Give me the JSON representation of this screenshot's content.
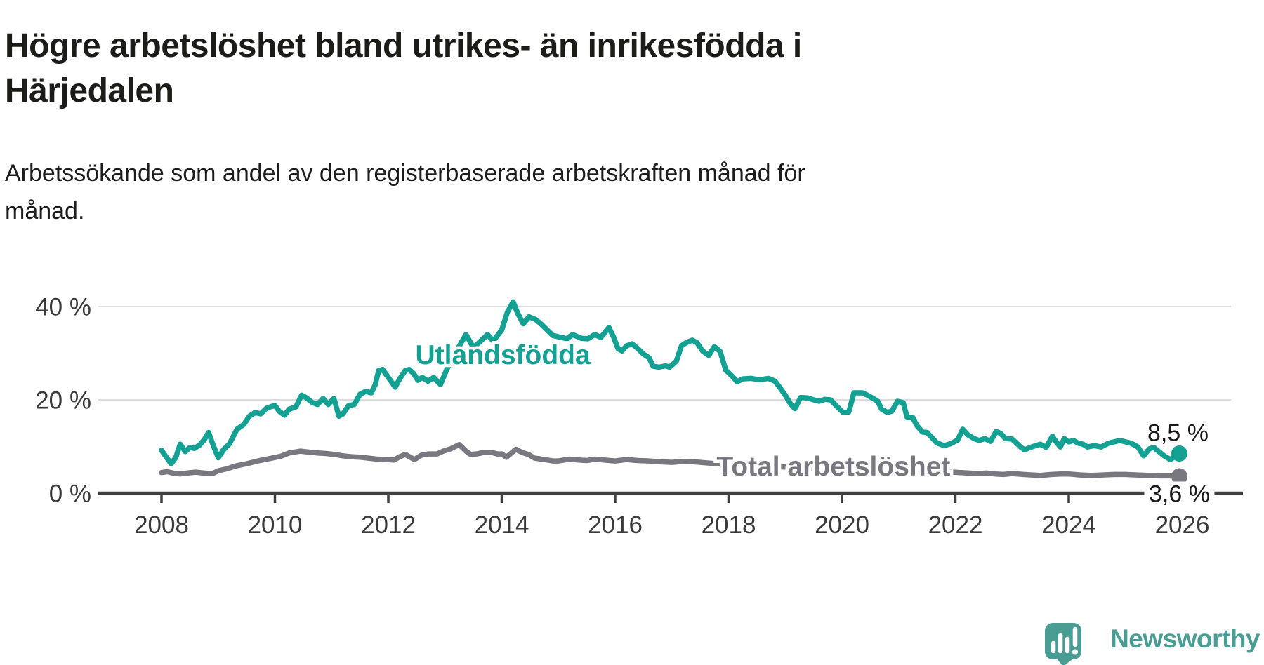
{
  "title": "Högre arbetslöshet bland utrikes- än inrikesfödda i\nHärjedalen",
  "subtitle": "Arbetssökande som andel av den registerbaserade arbetskraften månad för\nmånad.",
  "branding": {
    "logo_text": "Newsworthy",
    "logo_color": "#4a9d92",
    "logo_icon": "speech-bubble-bar-chart-exclamation"
  },
  "chart_data": {
    "type": "line",
    "title": "Högre arbetslöshet bland utrikes- än inrikesfödda i Härjedalen",
    "subtitle": "Arbetssökande som andel av den registerbaserade arbetskraften månad för månad.",
    "unit": "%",
    "grid": "horizontal",
    "x_axis": {
      "ticks": [
        2008,
        2010,
        2012,
        2014,
        2016,
        2018,
        2020,
        2022,
        2024,
        2026
      ],
      "tick_labels": [
        "2008",
        "2010",
        "2012",
        "2014",
        "2016",
        "2018",
        "2020",
        "2022",
        "2024",
        "2026"
      ],
      "range": [
        2007.6,
        2027.1
      ]
    },
    "y_axis": {
      "tick_values": [
        0,
        20,
        40
      ],
      "tick_labels": [
        "0 %",
        "20 %",
        "40 %"
      ],
      "range": [
        0,
        44
      ]
    },
    "colors": {
      "utlandsfodda": "#12a192",
      "total": "#797880",
      "gridline": "#dcdcdc",
      "axis": "#3f3f3f",
      "end_label_text": "#1a1a1a"
    },
    "series": [
      {
        "name": "Total arbetslöshet",
        "color": "#797880",
        "end_value": 3.6,
        "end_label": "3,6 %",
        "label_at": {
          "year": 2019.85,
          "pct": 5.9
        },
        "end_label_style": "on-axis-white-box",
        "points": [
          [
            2008.0,
            4.4
          ],
          [
            2008.1,
            4.6
          ],
          [
            2008.2,
            4.3
          ],
          [
            2008.33,
            4.1
          ],
          [
            2008.45,
            4.3
          ],
          [
            2008.6,
            4.5
          ],
          [
            2008.75,
            4.3
          ],
          [
            2008.9,
            4.2
          ],
          [
            2009.0,
            4.8
          ],
          [
            2009.15,
            5.2
          ],
          [
            2009.3,
            5.8
          ],
          [
            2009.5,
            6.3
          ],
          [
            2009.7,
            6.9
          ],
          [
            2009.9,
            7.4
          ],
          [
            2010.1,
            7.9
          ],
          [
            2010.25,
            8.6
          ],
          [
            2010.45,
            9.0
          ],
          [
            2010.6,
            8.8
          ],
          [
            2010.75,
            8.6
          ],
          [
            2010.9,
            8.5
          ],
          [
            2011.05,
            8.3
          ],
          [
            2011.2,
            8.0
          ],
          [
            2011.35,
            7.8
          ],
          [
            2011.5,
            7.7
          ],
          [
            2011.65,
            7.5
          ],
          [
            2011.8,
            7.3
          ],
          [
            2011.95,
            7.2
          ],
          [
            2012.1,
            7.1
          ],
          [
            2012.2,
            7.8
          ],
          [
            2012.3,
            8.3
          ],
          [
            2012.46,
            7.2
          ],
          [
            2012.58,
            8.1
          ],
          [
            2012.71,
            8.4
          ],
          [
            2012.86,
            8.4
          ],
          [
            2012.97,
            9.0
          ],
          [
            2013.1,
            9.5
          ],
          [
            2013.25,
            10.4
          ],
          [
            2013.37,
            9.0
          ],
          [
            2013.45,
            8.3
          ],
          [
            2013.56,
            8.4
          ],
          [
            2013.68,
            8.7
          ],
          [
            2013.83,
            8.7
          ],
          [
            2013.92,
            8.4
          ],
          [
            2014.0,
            8.4
          ],
          [
            2014.08,
            7.7
          ],
          [
            2014.25,
            9.4
          ],
          [
            2014.36,
            8.7
          ],
          [
            2014.47,
            8.3
          ],
          [
            2014.58,
            7.5
          ],
          [
            2014.75,
            7.2
          ],
          [
            2014.9,
            6.9
          ],
          [
            2015.0,
            6.9
          ],
          [
            2015.2,
            7.3
          ],
          [
            2015.35,
            7.1
          ],
          [
            2015.5,
            7.0
          ],
          [
            2015.65,
            7.3
          ],
          [
            2015.8,
            7.1
          ],
          [
            2016.0,
            6.9
          ],
          [
            2016.2,
            7.2
          ],
          [
            2016.4,
            7.0
          ],
          [
            2016.6,
            6.9
          ],
          [
            2016.8,
            6.7
          ],
          [
            2017.0,
            6.6
          ],
          [
            2017.2,
            6.8
          ],
          [
            2017.4,
            6.7
          ],
          [
            2017.6,
            6.5
          ],
          [
            2017.8,
            6.3
          ],
          [
            2018.0,
            6.2
          ],
          [
            2018.3,
            6.0
          ],
          [
            2018.6,
            5.8
          ],
          [
            2019.0,
            5.6
          ],
          [
            2019.4,
            5.4
          ],
          [
            2019.8,
            5.2
          ],
          [
            2020.1,
            5.3
          ],
          [
            2020.3,
            5.9
          ],
          [
            2020.6,
            5.7
          ],
          [
            2021.0,
            5.3
          ],
          [
            2021.4,
            4.9
          ],
          [
            2021.8,
            4.6
          ],
          [
            2022.1,
            4.4
          ],
          [
            2022.4,
            4.2
          ],
          [
            2022.55,
            4.3
          ],
          [
            2022.7,
            4.1
          ],
          [
            2022.85,
            4.0
          ],
          [
            2023.0,
            4.2
          ],
          [
            2023.2,
            4.0
          ],
          [
            2023.35,
            3.9
          ],
          [
            2023.5,
            3.8
          ],
          [
            2023.7,
            4.0
          ],
          [
            2023.85,
            4.1
          ],
          [
            2024.0,
            4.1
          ],
          [
            2024.2,
            3.9
          ],
          [
            2024.4,
            3.8
          ],
          [
            2024.6,
            3.9
          ],
          [
            2024.8,
            4.0
          ],
          [
            2025.0,
            4.0
          ],
          [
            2025.2,
            3.9
          ],
          [
            2025.4,
            3.8
          ],
          [
            2025.6,
            3.7
          ],
          [
            2025.78,
            3.7
          ],
          [
            2025.95,
            3.6
          ]
        ]
      },
      {
        "name": "Utlandsfödda",
        "color": "#12a192",
        "end_value": 8.5,
        "end_label": "8,5 %",
        "label_at": {
          "year": 2014.02,
          "pct": 29.8
        },
        "end_label_style": "above-point",
        "points": [
          [
            2008.0,
            9.2
          ],
          [
            2008.08,
            7.8
          ],
          [
            2008.17,
            6.3
          ],
          [
            2008.25,
            7.6
          ],
          [
            2008.33,
            10.5
          ],
          [
            2008.42,
            8.9
          ],
          [
            2008.5,
            9.8
          ],
          [
            2008.58,
            9.6
          ],
          [
            2008.67,
            10.3
          ],
          [
            2008.75,
            11.4
          ],
          [
            2008.83,
            13.0
          ],
          [
            2008.92,
            10.0
          ],
          [
            2009.0,
            7.6
          ],
          [
            2009.1,
            9.4
          ],
          [
            2009.2,
            10.6
          ],
          [
            2009.33,
            13.7
          ],
          [
            2009.45,
            14.7
          ],
          [
            2009.55,
            16.5
          ],
          [
            2009.65,
            17.3
          ],
          [
            2009.75,
            17.0
          ],
          [
            2009.85,
            18.2
          ],
          [
            2009.92,
            18.5
          ],
          [
            2010.0,
            18.8
          ],
          [
            2010.08,
            17.5
          ],
          [
            2010.17,
            16.7
          ],
          [
            2010.25,
            18.0
          ],
          [
            2010.37,
            18.5
          ],
          [
            2010.47,
            21.0
          ],
          [
            2010.55,
            20.5
          ],
          [
            2010.65,
            19.5
          ],
          [
            2010.75,
            19.0
          ],
          [
            2010.85,
            20.3
          ],
          [
            2010.94,
            19.0
          ],
          [
            2011.04,
            20.3
          ],
          [
            2011.13,
            16.5
          ],
          [
            2011.2,
            17.0
          ],
          [
            2011.3,
            18.8
          ],
          [
            2011.4,
            19.0
          ],
          [
            2011.5,
            21.2
          ],
          [
            2011.6,
            21.8
          ],
          [
            2011.7,
            21.5
          ],
          [
            2011.77,
            23.3
          ],
          [
            2011.83,
            26.3
          ],
          [
            2011.9,
            26.5
          ],
          [
            2012.0,
            24.8
          ],
          [
            2012.06,
            23.8
          ],
          [
            2012.12,
            22.7
          ],
          [
            2012.2,
            24.5
          ],
          [
            2012.3,
            26.3
          ],
          [
            2012.37,
            26.5
          ],
          [
            2012.45,
            25.6
          ],
          [
            2012.52,
            24.2
          ],
          [
            2012.6,
            24.8
          ],
          [
            2012.7,
            24.0
          ],
          [
            2012.8,
            24.8
          ],
          [
            2012.92,
            23.3
          ],
          [
            2013.04,
            26.8
          ],
          [
            2013.14,
            28.6
          ],
          [
            2013.25,
            31.5
          ],
          [
            2013.37,
            34.0
          ],
          [
            2013.5,
            31.2
          ],
          [
            2013.62,
            32.5
          ],
          [
            2013.75,
            34.0
          ],
          [
            2013.85,
            32.6
          ],
          [
            2014.0,
            35.0
          ],
          [
            2014.1,
            38.8
          ],
          [
            2014.2,
            41.0
          ],
          [
            2014.28,
            38.6
          ],
          [
            2014.38,
            36.3
          ],
          [
            2014.48,
            37.8
          ],
          [
            2014.6,
            37.2
          ],
          [
            2014.7,
            36.2
          ],
          [
            2014.8,
            35.0
          ],
          [
            2014.9,
            33.8
          ],
          [
            2015.0,
            33.5
          ],
          [
            2015.15,
            33.1
          ],
          [
            2015.25,
            34.0
          ],
          [
            2015.4,
            33.2
          ],
          [
            2015.52,
            33.1
          ],
          [
            2015.64,
            34.0
          ],
          [
            2015.75,
            33.4
          ],
          [
            2015.89,
            35.5
          ],
          [
            2015.97,
            33.5
          ],
          [
            2016.05,
            31.0
          ],
          [
            2016.12,
            30.5
          ],
          [
            2016.2,
            31.6
          ],
          [
            2016.3,
            32.0
          ],
          [
            2016.4,
            31.0
          ],
          [
            2016.5,
            29.8
          ],
          [
            2016.6,
            29.0
          ],
          [
            2016.67,
            27.2
          ],
          [
            2016.77,
            27.0
          ],
          [
            2016.89,
            27.3
          ],
          [
            2016.96,
            27.0
          ],
          [
            2017.08,
            28.3
          ],
          [
            2017.17,
            31.6
          ],
          [
            2017.26,
            32.3
          ],
          [
            2017.36,
            32.8
          ],
          [
            2017.44,
            32.3
          ],
          [
            2017.54,
            30.5
          ],
          [
            2017.65,
            29.5
          ],
          [
            2017.75,
            31.4
          ],
          [
            2017.85,
            30.4
          ],
          [
            2017.95,
            26.4
          ],
          [
            2018.07,
            25.0
          ],
          [
            2018.15,
            23.9
          ],
          [
            2018.25,
            24.5
          ],
          [
            2018.4,
            24.6
          ],
          [
            2018.55,
            24.3
          ],
          [
            2018.7,
            24.6
          ],
          [
            2018.82,
            24.0
          ],
          [
            2018.9,
            22.7
          ],
          [
            2019.0,
            21.0
          ],
          [
            2019.1,
            19.0
          ],
          [
            2019.17,
            18.1
          ],
          [
            2019.27,
            20.5
          ],
          [
            2019.4,
            20.4
          ],
          [
            2019.5,
            20.0
          ],
          [
            2019.6,
            19.7
          ],
          [
            2019.7,
            20.1
          ],
          [
            2019.8,
            20.0
          ],
          [
            2019.92,
            18.5
          ],
          [
            2020.02,
            17.3
          ],
          [
            2020.12,
            17.4
          ],
          [
            2020.21,
            21.5
          ],
          [
            2020.36,
            21.5
          ],
          [
            2020.45,
            21.0
          ],
          [
            2020.55,
            20.3
          ],
          [
            2020.63,
            19.7
          ],
          [
            2020.7,
            18.0
          ],
          [
            2020.8,
            17.3
          ],
          [
            2020.88,
            17.6
          ],
          [
            2020.98,
            19.7
          ],
          [
            2021.08,
            19.4
          ],
          [
            2021.15,
            16.2
          ],
          [
            2021.25,
            16.2
          ],
          [
            2021.32,
            14.5
          ],
          [
            2021.42,
            13.1
          ],
          [
            2021.5,
            13.0
          ],
          [
            2021.58,
            12.0
          ],
          [
            2021.67,
            10.8
          ],
          [
            2021.8,
            10.2
          ],
          [
            2021.92,
            10.6
          ],
          [
            2022.04,
            11.4
          ],
          [
            2022.13,
            13.7
          ],
          [
            2022.22,
            12.5
          ],
          [
            2022.33,
            11.7
          ],
          [
            2022.42,
            11.3
          ],
          [
            2022.52,
            11.7
          ],
          [
            2022.62,
            11.1
          ],
          [
            2022.72,
            13.2
          ],
          [
            2022.8,
            12.8
          ],
          [
            2022.88,
            11.7
          ],
          [
            2023.0,
            11.6
          ],
          [
            2023.08,
            10.7
          ],
          [
            2023.15,
            9.9
          ],
          [
            2023.22,
            9.3
          ],
          [
            2023.32,
            9.8
          ],
          [
            2023.42,
            10.2
          ],
          [
            2023.5,
            10.5
          ],
          [
            2023.6,
            9.8
          ],
          [
            2023.71,
            12.2
          ],
          [
            2023.78,
            11.0
          ],
          [
            2023.85,
            9.9
          ],
          [
            2023.92,
            11.7
          ],
          [
            2024.0,
            11.0
          ],
          [
            2024.08,
            11.3
          ],
          [
            2024.17,
            10.7
          ],
          [
            2024.25,
            10.5
          ],
          [
            2024.33,
            9.9
          ],
          [
            2024.45,
            10.2
          ],
          [
            2024.57,
            9.9
          ],
          [
            2024.7,
            10.7
          ],
          [
            2024.8,
            11.0
          ],
          [
            2024.9,
            11.3
          ],
          [
            2025.0,
            11.0
          ],
          [
            2025.1,
            10.7
          ],
          [
            2025.22,
            9.9
          ],
          [
            2025.32,
            8.0
          ],
          [
            2025.42,
            9.5
          ],
          [
            2025.5,
            9.8
          ],
          [
            2025.58,
            9.0
          ],
          [
            2025.68,
            8.0
          ],
          [
            2025.79,
            7.2
          ],
          [
            2025.95,
            8.5
          ]
        ]
      }
    ]
  }
}
